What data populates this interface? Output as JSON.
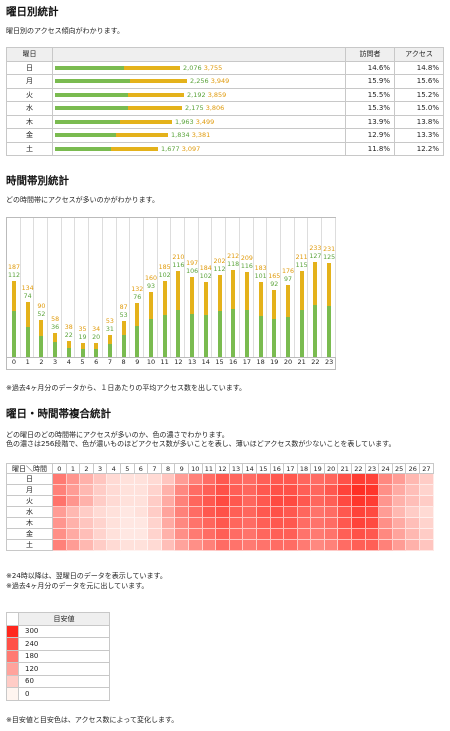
{
  "day_section": {
    "title": "曜日別統計",
    "desc": "曜日別のアクセス傾向がわかります。",
    "headers": {
      "day": "曜日",
      "visitors": "訪問者",
      "access": "アクセス"
    },
    "rows": [
      {
        "day": "日",
        "visitors": 2076,
        "access": 3755,
        "vpct": "14.6%",
        "apct": "14.8%"
      },
      {
        "day": "月",
        "visitors": 2256,
        "access": 3949,
        "vpct": "15.9%",
        "apct": "15.6%"
      },
      {
        "day": "火",
        "visitors": 2192,
        "access": 3859,
        "vpct": "15.5%",
        "apct": "15.2%"
      },
      {
        "day": "水",
        "visitors": 2175,
        "access": 3806,
        "vpct": "15.3%",
        "apct": "15.0%"
      },
      {
        "day": "木",
        "visitors": 1963,
        "access": 3499,
        "vpct": "13.9%",
        "apct": "13.8%"
      },
      {
        "day": "金",
        "visitors": 1834,
        "access": 3381,
        "vpct": "12.9%",
        "apct": "13.3%"
      },
      {
        "day": "土",
        "visitors": 1677,
        "access": 3097,
        "vpct": "11.8%",
        "apct": "12.2%"
      }
    ]
  },
  "hour_section": {
    "title": "時間帯別統計",
    "desc": "どの時間帯にアクセスが多いのかがわかります。",
    "note": "※過去4ヶ月分のデータから、１日あたりの平均アクセス数を出しています。"
  },
  "chart_data": {
    "type": "bar",
    "categories": [
      "0",
      "1",
      "2",
      "3",
      "4",
      "5",
      "6",
      "7",
      "8",
      "9",
      "10",
      "11",
      "12",
      "13",
      "14",
      "15",
      "16",
      "17",
      "18",
      "19",
      "20",
      "21",
      "22",
      "23"
    ],
    "series": [
      {
        "values": [
          187,
          134,
          90,
          58,
          38,
          35,
          34,
          53,
          87,
          132,
          160,
          185,
          210,
          197,
          184,
          202,
          212,
          209,
          183,
          165,
          176,
          211,
          233,
          231
        ]
      },
      {
        "values": [
          112,
          74,
          52,
          36,
          22,
          19,
          20,
          31,
          53,
          76,
          93,
          102,
          116,
          106,
          102,
          112,
          118,
          116,
          101,
          92,
          97,
          115,
          127,
          125
        ]
      }
    ],
    "ylim": [
      0,
      240
    ]
  },
  "heat_section": {
    "title": "曜日・時間帯複合統計",
    "desc1": "どの曜日のどの時間帯にアクセスが多いのか、色の濃さでわかります。",
    "desc2": "色の濃さは256段階で、色が濃いものほどアクセス数が多いことを表し、薄いほどアクセス数が少ないことを表しています。",
    "corner": "曜日＼時間",
    "days": [
      "日",
      "月",
      "火",
      "水",
      "木",
      "金",
      "土"
    ],
    "hours": [
      "0",
      "1",
      "2",
      "3",
      "4",
      "5",
      "6",
      "7",
      "8",
      "9",
      "10",
      "11",
      "12",
      "13",
      "14",
      "15",
      "16",
      "17",
      "18",
      "19",
      "20",
      "21",
      "22",
      "23",
      "24",
      "25",
      "26",
      "27"
    ],
    "values": [
      [
        180,
        140,
        100,
        70,
        40,
        30,
        30,
        40,
        70,
        130,
        170,
        200,
        230,
        210,
        200,
        220,
        230,
        230,
        210,
        200,
        210,
        240,
        270,
        260,
        160,
        130,
        90,
        60
      ],
      [
        170,
        130,
        90,
        60,
        40,
        30,
        30,
        50,
        100,
        160,
        200,
        220,
        240,
        220,
        210,
        230,
        240,
        240,
        220,
        210,
        230,
        260,
        290,
        280,
        150,
        110,
        80,
        50
      ],
      [
        190,
        140,
        100,
        60,
        40,
        30,
        30,
        60,
        110,
        170,
        210,
        230,
        250,
        230,
        210,
        230,
        250,
        250,
        230,
        210,
        220,
        250,
        280,
        270,
        140,
        100,
        80,
        60
      ],
      [
        130,
        90,
        60,
        40,
        30,
        20,
        30,
        60,
        120,
        170,
        200,
        230,
        240,
        220,
        210,
        230,
        240,
        230,
        210,
        190,
        200,
        230,
        260,
        250,
        130,
        90,
        60,
        40
      ],
      [
        140,
        100,
        70,
        50,
        30,
        20,
        20,
        50,
        110,
        160,
        190,
        210,
        230,
        210,
        200,
        220,
        230,
        230,
        200,
        190,
        200,
        230,
        260,
        250,
        150,
        110,
        80,
        50
      ],
      [
        150,
        110,
        80,
        50,
        30,
        20,
        20,
        50,
        100,
        150,
        180,
        200,
        220,
        200,
        190,
        210,
        220,
        220,
        190,
        180,
        190,
        220,
        240,
        230,
        160,
        120,
        90,
        60
      ],
      [
        170,
        130,
        90,
        60,
        40,
        30,
        30,
        40,
        80,
        120,
        150,
        170,
        200,
        190,
        180,
        190,
        200,
        200,
        180,
        160,
        170,
        200,
        220,
        220,
        170,
        130,
        100,
        70
      ]
    ],
    "note1": "※24時以降は、翌曜日のデータを表示しています。",
    "note2": "※過去4ヶ月分のデータを元に出しています。"
  },
  "legend": {
    "header": "目安値",
    "levels": [
      "300",
      "240",
      "180",
      "120",
      "60",
      "0"
    ],
    "note": "※目安値と目安色は、アクセス数によって変化します。"
  }
}
